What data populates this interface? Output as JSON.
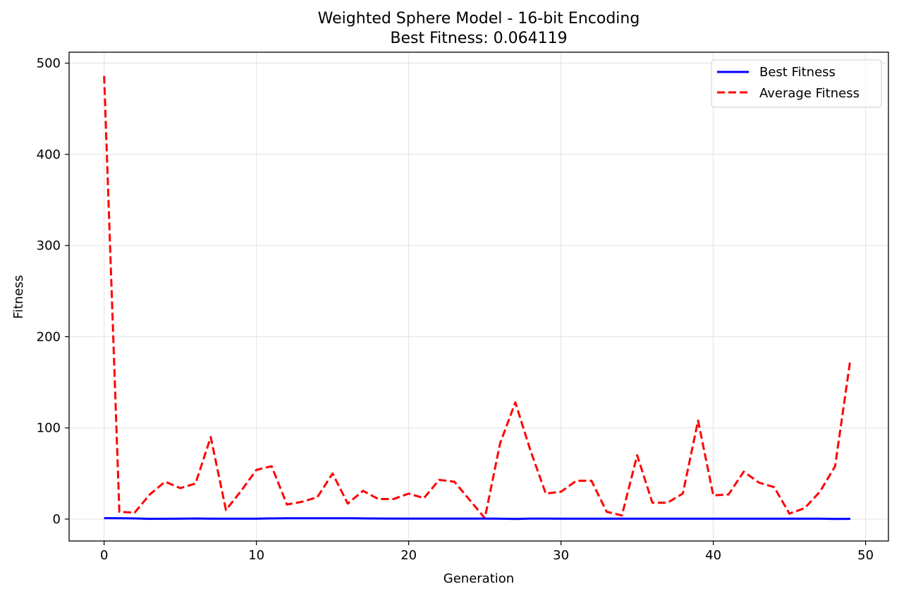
{
  "chart_data": {
    "type": "line",
    "title": "Weighted Sphere Model - 16-bit Encoding",
    "subtitle": "Best Fitness: 0.064119",
    "xlabel": "Generation",
    "ylabel": "Fitness",
    "xlim": [
      -2.3,
      51.5
    ],
    "ylim": [
      -24,
      512
    ],
    "xticks": [
      0,
      10,
      20,
      30,
      40,
      50
    ],
    "yticks": [
      0,
      100,
      200,
      300,
      400,
      500
    ],
    "grid": true,
    "legend_position": "top-right",
    "x": [
      0,
      1,
      2,
      3,
      4,
      5,
      6,
      7,
      8,
      9,
      10,
      11,
      12,
      13,
      14,
      15,
      16,
      17,
      18,
      19,
      20,
      21,
      22,
      23,
      24,
      25,
      26,
      27,
      28,
      29,
      30,
      31,
      32,
      33,
      34,
      35,
      36,
      37,
      38,
      39,
      40,
      41,
      42,
      43,
      44,
      45,
      46,
      47,
      48,
      49
    ],
    "series": [
      {
        "name": "Best Fitness",
        "color": "#0000ff",
        "style": "solid",
        "values": [
          1.0,
          0.9,
          0.8,
          0.3,
          0.4,
          0.5,
          0.7,
          0.5,
          0.5,
          0.5,
          0.5,
          0.8,
          0.9,
          0.9,
          0.9,
          0.9,
          0.9,
          0.8,
          0.7,
          0.6,
          0.6,
          0.6,
          0.6,
          0.6,
          0.6,
          0.6,
          0.5,
          0.2,
          0.6,
          0.6,
          0.5,
          0.5,
          0.5,
          0.5,
          0.5,
          0.5,
          0.5,
          0.5,
          0.5,
          0.5,
          0.5,
          0.5,
          0.5,
          0.5,
          0.5,
          0.5,
          0.5,
          0.5,
          0.2,
          0.3
        ]
      },
      {
        "name": "Average Fitness",
        "color": "#ff0000",
        "style": "dashed",
        "values": [
          486,
          8,
          7,
          27,
          41,
          34,
          39,
          90,
          10,
          31,
          54,
          58,
          16,
          19,
          24,
          50,
          17,
          31,
          22,
          22,
          28,
          23,
          43,
          41,
          21,
          1,
          83,
          128,
          75,
          28,
          30,
          42,
          42,
          8,
          4,
          70,
          18,
          18,
          28,
          108,
          26,
          27,
          52,
          40,
          35,
          6,
          12,
          30,
          58,
          175
        ]
      }
    ]
  }
}
